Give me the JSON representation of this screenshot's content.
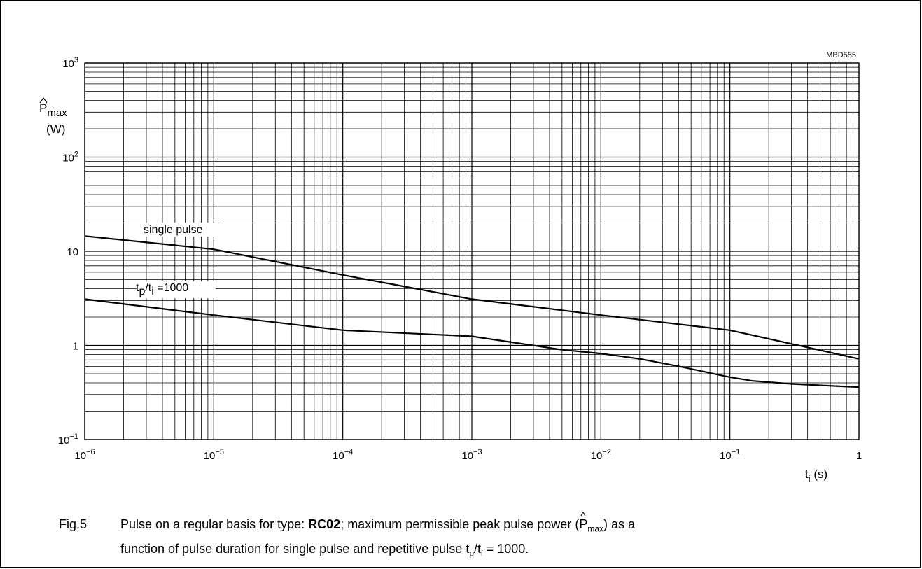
{
  "chart_data": {
    "type": "line",
    "code": "MBD585",
    "ylabel": {
      "symbol": "P",
      "subscript": "max",
      "unit": "(W)"
    },
    "xlabel": {
      "symbol": "t",
      "subscript": "i",
      "unit": "(s)"
    },
    "xscale": "log",
    "yscale": "log",
    "xlim": [
      1e-06,
      1
    ],
    "ylim": [
      0.1,
      1000
    ],
    "grid": true,
    "x_ticks": [
      {
        "base": "10",
        "exp": "−6"
      },
      {
        "base": "10",
        "exp": "−5"
      },
      {
        "base": "10",
        "exp": "−4"
      },
      {
        "base": "10",
        "exp": "−3"
      },
      {
        "base": "10",
        "exp": "−2"
      },
      {
        "base": "10",
        "exp": "−1"
      },
      {
        "base": "1",
        "exp": ""
      }
    ],
    "y_ticks": [
      {
        "base": "10",
        "exp": "−1"
      },
      {
        "base": "1",
        "exp": ""
      },
      {
        "base": "10",
        "exp": ""
      },
      {
        "base": "10",
        "exp": "2"
      },
      {
        "base": "10",
        "exp": "3"
      }
    ],
    "series": [
      {
        "name": "single pulse",
        "x": [
          1e-06,
          1e-05,
          0.0001,
          0.001,
          0.01,
          0.1,
          1
        ],
        "y": [
          14.5,
          10.5,
          5.6,
          3.1,
          2.1,
          1.45,
          0.72
        ]
      },
      {
        "name_parts": [
          "t",
          "p",
          "/t",
          "i",
          " =1000"
        ],
        "x": [
          1e-06,
          1e-05,
          0.0001,
          0.001,
          0.005,
          0.01,
          0.02,
          0.04,
          0.1,
          0.15,
          0.3,
          1
        ],
        "y": [
          3.1,
          2.1,
          1.45,
          1.25,
          0.9,
          0.82,
          0.72,
          0.6,
          0.46,
          0.42,
          0.39,
          0.36
        ]
      }
    ]
  },
  "caption": {
    "number": "Fig.5",
    "text1": "Pulse on a regular basis for type: ",
    "bold": "RC02",
    "text2": "; maximum permissible peak pulse power (",
    "p_symbol": "P",
    "p_subscript": "max",
    "text3": ") as a",
    "line2": "function of pulse duration for single pulse and repetitive pulse t",
    "tp_sub": "p",
    "slash_t": "/t",
    "ti_sub": "i",
    "tail": " = 1000."
  }
}
